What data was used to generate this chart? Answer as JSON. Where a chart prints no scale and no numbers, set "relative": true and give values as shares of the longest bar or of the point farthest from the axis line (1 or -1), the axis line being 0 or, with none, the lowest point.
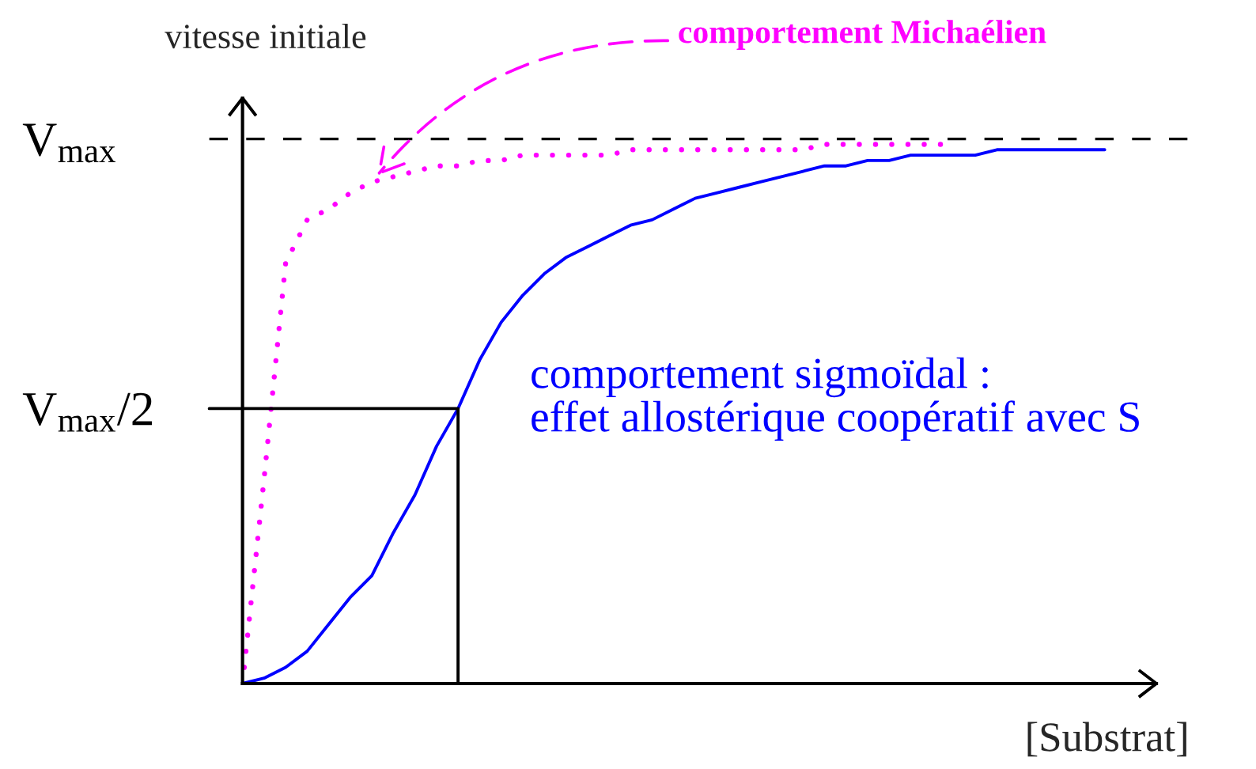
{
  "chart_data": {
    "type": "line",
    "xlabel": "[Substrat]",
    "ylabel": "vitesse initiale",
    "relative": true,
    "tick_labels": false,
    "categories": [
      null,
      null,
      null,
      null,
      null,
      null,
      null,
      null,
      null,
      null,
      null,
      null,
      null,
      null,
      null,
      null,
      null,
      null,
      null,
      null,
      null,
      null,
      null,
      null,
      null,
      null,
      null,
      null,
      null,
      null,
      null,
      null,
      null,
      null,
      null,
      null,
      null,
      null,
      null,
      null,
      null
    ],
    "series": [
      {
        "name": "comportement Michaélien",
        "color": "#ff00ff",
        "line_style": "dotted",
        "values": [
          0,
          0.38,
          0.78,
          0.86,
          0.88,
          0.91,
          0.93,
          0.94,
          0.95,
          0.96,
          0.96,
          0.97,
          0.97,
          0.98,
          0.98,
          0.98,
          0.98,
          0.98,
          0.99,
          0.99,
          0.99,
          0.99,
          0.99,
          0.99,
          0.99,
          0.99,
          0.99,
          1,
          1,
          1,
          1,
          1,
          1,
          1,
          null,
          null,
          null,
          null,
          null,
          null,
          null
        ]
      },
      {
        "name": "comportement sigmoïdal :\neffet allostérique coopératif avec S",
        "color": "#0000ff",
        "line_style": "solid",
        "values": [
          0,
          0.01,
          0.03,
          0.06,
          0.11,
          0.16,
          0.2,
          0.28,
          0.35,
          0.44,
          0.51,
          0.6,
          0.67,
          0.72,
          0.76,
          0.79,
          0.81,
          0.83,
          0.85,
          0.86,
          0.88,
          0.9,
          0.91,
          0.92,
          0.93,
          0.94,
          0.95,
          0.96,
          0.96,
          0.97,
          0.97,
          0.98,
          0.98,
          0.98,
          0.98,
          0.99,
          0.99,
          0.99,
          0.99,
          0.99,
          0.99
        ]
      },
      {
        "name": "V$_{max}$/2",
        "type": "step",
        "color": "#000000",
        "line_style": "solid",
        "values": [
          0.51,
          0.51,
          0.51,
          0.51,
          0.51,
          0.51,
          0.51,
          0.51,
          0.51,
          0.51,
          0,
          null,
          null,
          null,
          null,
          null,
          null,
          null,
          null,
          null,
          null,
          null,
          null,
          null,
          null,
          null,
          null,
          null,
          null,
          null,
          null,
          null,
          null,
          null,
          null,
          null,
          null,
          null,
          null,
          null,
          null
        ]
      }
    ],
    "ref_lines": [
      {
        "axis": "y",
        "value": 1.01,
        "label": "V$_{max}$",
        "color": "#000000",
        "line_style": "dashed"
      }
    ],
    "legend": false
  }
}
